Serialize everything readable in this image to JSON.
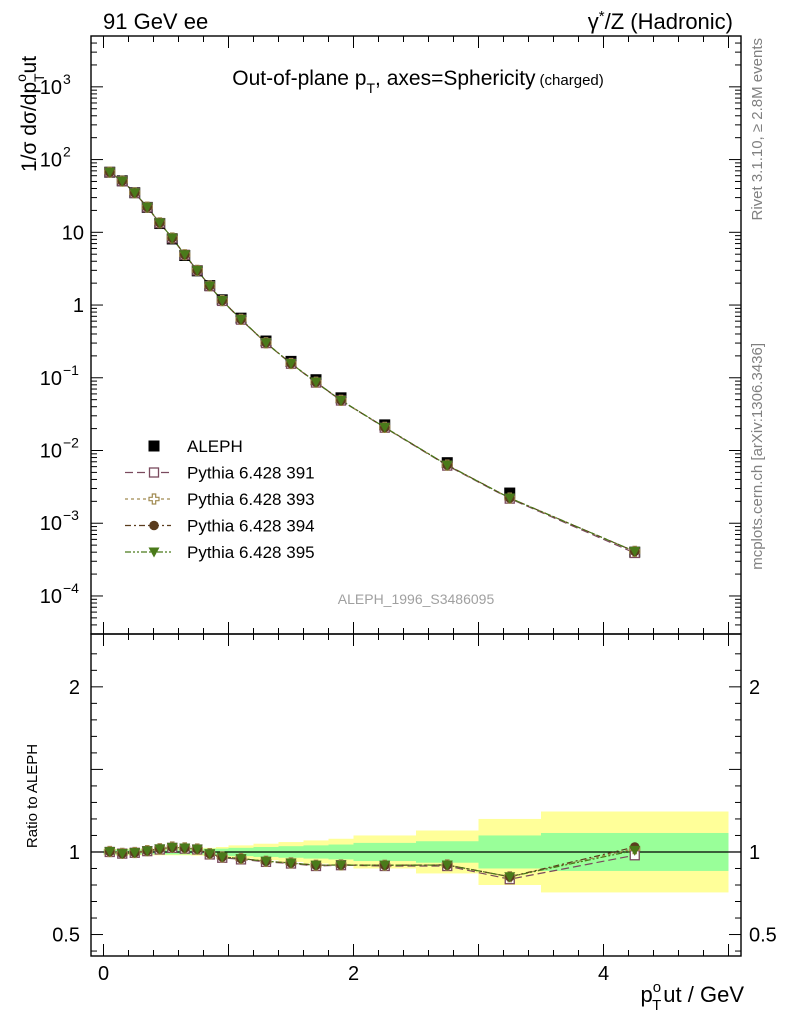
{
  "header": {
    "left": "91 GeV ee",
    "right_sup": "*",
    "right_pre": "γ",
    "right_post": "/Z (Hadronic)"
  },
  "side_labels": {
    "top": "Rivet 3.1.10, ≥ 2.8M events",
    "bottom": "mcplots.cern.ch [arXiv:1306.3436]"
  },
  "watermark": "ALEPH_1996_S3486095",
  "chart_data": [
    {
      "type": "scatter",
      "title_main": "Out-of-plane p",
      "title_sub": "T",
      "title_rest": ", axes=Sphericity",
      "title_small": "(charged)",
      "ylabel": "1/σ dσ/dp",
      "ylabel_sup": "o",
      "ylabel_sub": "T",
      "ylabel_tail": "ut",
      "yscale": "log",
      "ylim": [
        3e-05,
        5000
      ],
      "xlim": [
        -0.1,
        5.1
      ],
      "yticks": [
        {
          "v": 0.0001,
          "base": "10",
          "exp": "−4"
        },
        {
          "v": 0.001,
          "base": "10",
          "exp": "−3"
        },
        {
          "v": 0.01,
          "base": "10",
          "exp": "−2"
        },
        {
          "v": 0.1,
          "base": "10",
          "exp": "−1"
        },
        {
          "v": 1,
          "base": "1",
          "exp": ""
        },
        {
          "v": 10,
          "base": "10",
          "exp": ""
        },
        {
          "v": 100,
          "base": "10",
          "exp": "2"
        },
        {
          "v": 1000,
          "base": "10",
          "exp": "3"
        }
      ],
      "x": [
        0.05,
        0.15,
        0.25,
        0.35,
        0.45,
        0.55,
        0.65,
        0.75,
        0.85,
        0.95,
        1.1,
        1.3,
        1.5,
        1.7,
        1.9,
        2.25,
        2.75,
        3.25,
        4.25
      ],
      "series": [
        {
          "name": "ALEPH",
          "marker": "filled-square",
          "color": "#000000",
          "values": [
            67,
            51,
            35,
            22,
            13.2,
            8.1,
            4.8,
            2.95,
            1.85,
            1.18,
            0.66,
            0.32,
            0.168,
            0.094,
            0.053,
            0.0225,
            0.0068,
            0.0026,
            0.0004
          ]
        },
        {
          "name": "Pythia 6.428 391",
          "marker": "open-square",
          "color": "#7a4a5e",
          "dash": "8,4",
          "values": [
            67,
            50.5,
            34.8,
            22.1,
            13.4,
            8.3,
            4.9,
            3.0,
            1.82,
            1.14,
            0.63,
            0.3,
            0.156,
            0.086,
            0.0487,
            0.0206,
            0.0062,
            0.00218,
            0.00039
          ]
        },
        {
          "name": "Pythia 6.428 393",
          "marker": "open-cross",
          "color": "#a08a50",
          "dash": "3,3",
          "values": [
            67.2,
            50.6,
            34.9,
            22.2,
            13.5,
            8.35,
            4.92,
            3.0,
            1.83,
            1.15,
            0.635,
            0.302,
            0.157,
            0.087,
            0.0489,
            0.0208,
            0.0063,
            0.00222,
            0.00041
          ]
        },
        {
          "name": "Pythia 6.428 394",
          "marker": "filled-circle",
          "color": "#5a3c1e",
          "dash": "6,3,2,3",
          "values": [
            67.1,
            50.6,
            34.9,
            22.2,
            13.5,
            8.35,
            4.92,
            3.0,
            1.83,
            1.15,
            0.635,
            0.302,
            0.157,
            0.087,
            0.0489,
            0.0208,
            0.0063,
            0.00222,
            0.00041
          ]
        },
        {
          "name": "Pythia 6.428 395",
          "marker": "filled-triangle-down",
          "color": "#4a7a1a",
          "dash": "6,2,2,2,2,2",
          "values": [
            67.1,
            50.6,
            34.9,
            22.2,
            13.5,
            8.35,
            4.92,
            3.0,
            1.83,
            1.15,
            0.635,
            0.302,
            0.157,
            0.087,
            0.0489,
            0.0208,
            0.0063,
            0.00222,
            0.00041
          ]
        }
      ],
      "legend": "top-left inside"
    },
    {
      "type": "line",
      "ylabel": "Ratio to ALEPH",
      "xlabel_main": "p",
      "xlabel_sup": "o",
      "xlabel_sub": "T",
      "xlabel_tail": "ut / GeV",
      "ylim": [
        0.37,
        2.32
      ],
      "xlim": [
        -0.1,
        5.1
      ],
      "yticks": [
        {
          "v": 0.5,
          "label": "0.5"
        },
        {
          "v": 1,
          "label": "1"
        },
        {
          "v": 2,
          "label": "2"
        }
      ],
      "xticks": [
        {
          "v": 0,
          "label": "0"
        },
        {
          "v": 2,
          "label": "2"
        },
        {
          "v": 4,
          "label": "4"
        }
      ],
      "bands": {
        "edges": [
          0,
          0.1,
          0.2,
          0.3,
          0.4,
          0.5,
          0.6,
          0.7,
          0.8,
          0.9,
          1.0,
          1.2,
          1.4,
          1.6,
          1.8,
          2.0,
          2.5,
          3.0,
          3.5,
          5.0
        ],
        "stat_sys": [
          0.015,
          0.015,
          0.015,
          0.015,
          0.015,
          0.015,
          0.015,
          0.015,
          0.02,
          0.02,
          0.025,
          0.03,
          0.035,
          0.04,
          0.045,
          0.055,
          0.065,
          0.1,
          0.115
        ],
        "total": [
          0.02,
          0.02,
          0.02,
          0.02,
          0.02,
          0.02,
          0.02,
          0.022,
          0.025,
          0.03,
          0.04,
          0.05,
          0.06,
          0.07,
          0.08,
          0.1,
          0.13,
          0.2,
          0.245
        ],
        "colors": {
          "inner": "#99ff99",
          "outer": "#ffff99"
        }
      },
      "series": [
        {
          "name": "Pythia 6.428 391",
          "values": [
            1.0,
            0.99,
            0.995,
            1.005,
            1.015,
            1.025,
            1.02,
            1.015,
            0.985,
            0.965,
            0.955,
            0.94,
            0.93,
            0.915,
            0.92,
            0.915,
            0.915,
            0.835,
            0.98
          ]
        },
        {
          "name": "Pythia 6.428 393",
          "values": [
            1.003,
            0.992,
            0.997,
            1.008,
            1.02,
            1.03,
            1.025,
            1.018,
            0.99,
            0.97,
            0.96,
            0.944,
            0.934,
            0.92,
            0.922,
            0.92,
            0.922,
            0.85,
            1.02
          ]
        },
        {
          "name": "Pythia 6.428 394",
          "values": [
            1.002,
            0.991,
            0.996,
            1.007,
            1.019,
            1.028,
            1.024,
            1.017,
            0.989,
            0.97,
            0.96,
            0.944,
            0.933,
            0.92,
            0.921,
            0.92,
            0.921,
            0.85,
            1.03
          ]
        },
        {
          "name": "Pythia 6.428 395",
          "values": [
            1.002,
            0.991,
            0.996,
            1.007,
            1.019,
            1.028,
            1.024,
            1.017,
            0.989,
            0.97,
            0.96,
            0.944,
            0.933,
            0.92,
            0.921,
            0.92,
            0.921,
            0.85,
            1.01
          ]
        }
      ]
    }
  ]
}
